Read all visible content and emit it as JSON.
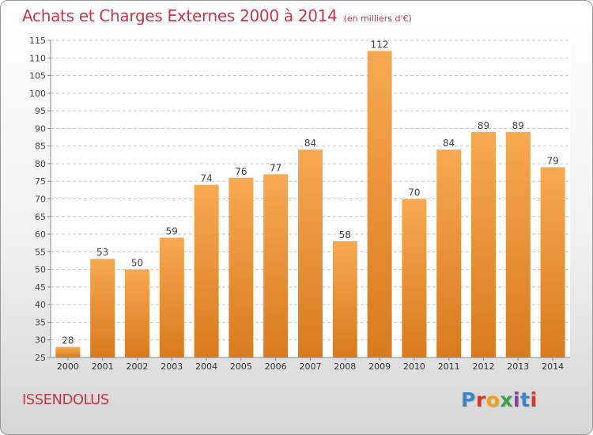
{
  "title": "Achats et Charges Externes 2000 à 2014",
  "subtitle": "(en milliers d'€)",
  "commune": "ISSENDOLUS",
  "logo": "Proxiti",
  "colors": {
    "title": "#c03a4a",
    "bar_top": "#f7a952",
    "bar_bottom": "#d97a1e",
    "logo": [
      "#3a86c8",
      "#d33a2c",
      "#f0a020",
      "#3aa04a",
      "#8a3aa0",
      "#3a86c8",
      "#d33a2c"
    ]
  },
  "chart_data": {
    "type": "bar",
    "title": "Achats et Charges Externes 2000 à 2014",
    "categories": [
      "2000",
      "2001",
      "2002",
      "2003",
      "2004",
      "2005",
      "2006",
      "2007",
      "2008",
      "2009",
      "2010",
      "2011",
      "2012",
      "2013",
      "2014"
    ],
    "values": [
      28,
      53,
      50,
      59,
      74,
      76,
      77,
      84,
      58,
      112,
      70,
      84,
      89,
      89,
      79
    ],
    "ylim": [
      25,
      115
    ],
    "yticks": [
      25,
      30,
      35,
      40,
      45,
      50,
      55,
      60,
      65,
      70,
      75,
      80,
      85,
      90,
      95,
      100,
      105,
      110,
      115
    ],
    "grid": true,
    "xlabel": "",
    "ylabel": ""
  }
}
